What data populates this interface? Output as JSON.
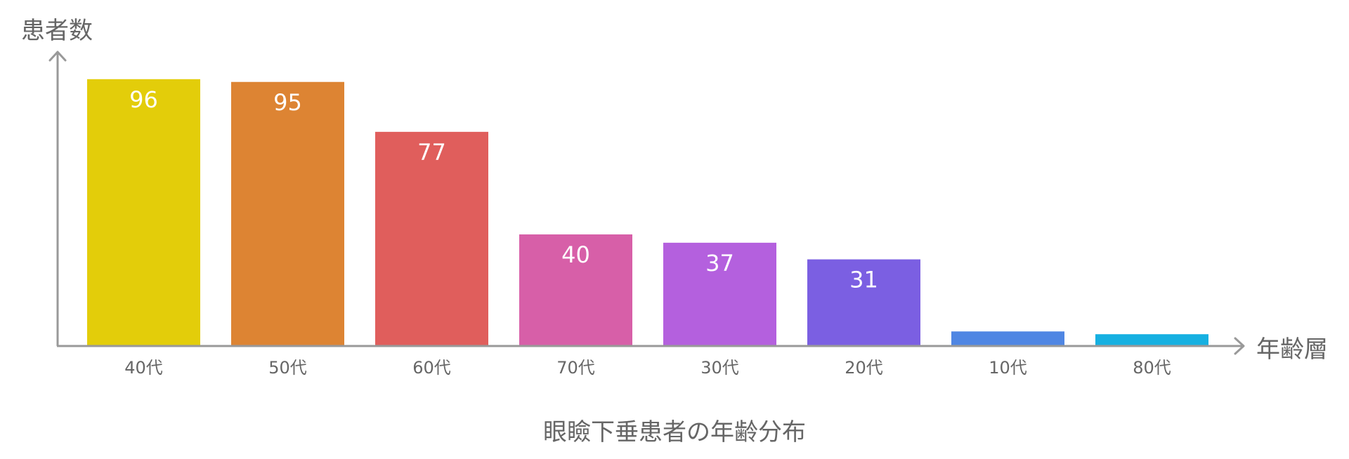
{
  "chart_data": {
    "type": "bar",
    "title": "眼瞼下垂患者の年齢分布",
    "ylabel": "患者数",
    "xlabel": "年齢層",
    "categories": [
      "40代",
      "50代",
      "60代",
      "70代",
      "30代",
      "20代",
      "10代",
      "80代"
    ],
    "values": [
      96,
      95,
      77,
      40,
      37,
      31,
      5,
      4
    ],
    "data_labels": [
      "96",
      "95",
      "77",
      "40",
      "37",
      "31",
      "",
      ""
    ],
    "colors": [
      "#E3CD0A",
      "#DD8433",
      "#E05E5C",
      "#D75FA8",
      "#B460DE",
      "#7B5FE2",
      "#4F86E3",
      "#16B0E1"
    ],
    "ylim": [
      0,
      100
    ],
    "grid": false,
    "legend": "none"
  }
}
